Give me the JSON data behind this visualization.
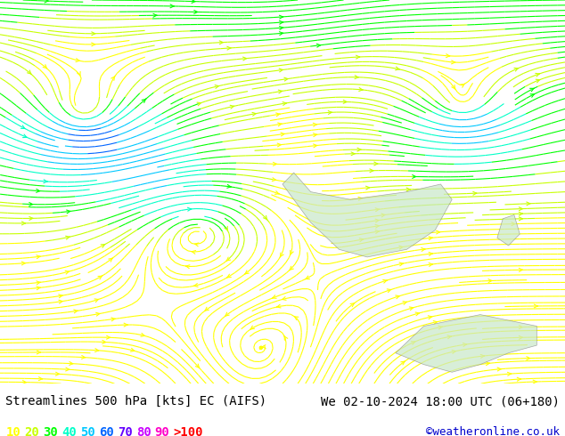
{
  "title_left": "Streamlines 500 hPa [kts] EC (AIFS)",
  "title_right": "We 02-10-2024 18:00 UTC (06+180)",
  "credit": "©weatheronline.co.uk",
  "legend_values": [
    10,
    20,
    30,
    40,
    50,
    60,
    70,
    80,
    90,
    ">100"
  ],
  "legend_colors": [
    "#ffff00",
    "#c8ff00",
    "#00ff00",
    "#00ffc8",
    "#00c8ff",
    "#0064ff",
    "#6400ff",
    "#c800ff",
    "#ff00c8",
    "#ff0000"
  ],
  "background_color": "#e8e8e8",
  "streamline_speed_levels": [
    10,
    20,
    30,
    40,
    50,
    60,
    70,
    80,
    90,
    100
  ],
  "colormap_colors": [
    "#ffff00",
    "#c8ff00",
    "#00ff00",
    "#00ffc8",
    "#00c8ff",
    "#0064ff",
    "#6400ff",
    "#c800ff",
    "#ff00c8",
    "#ff0000"
  ],
  "figsize": [
    6.34,
    4.9
  ],
  "dpi": 100
}
